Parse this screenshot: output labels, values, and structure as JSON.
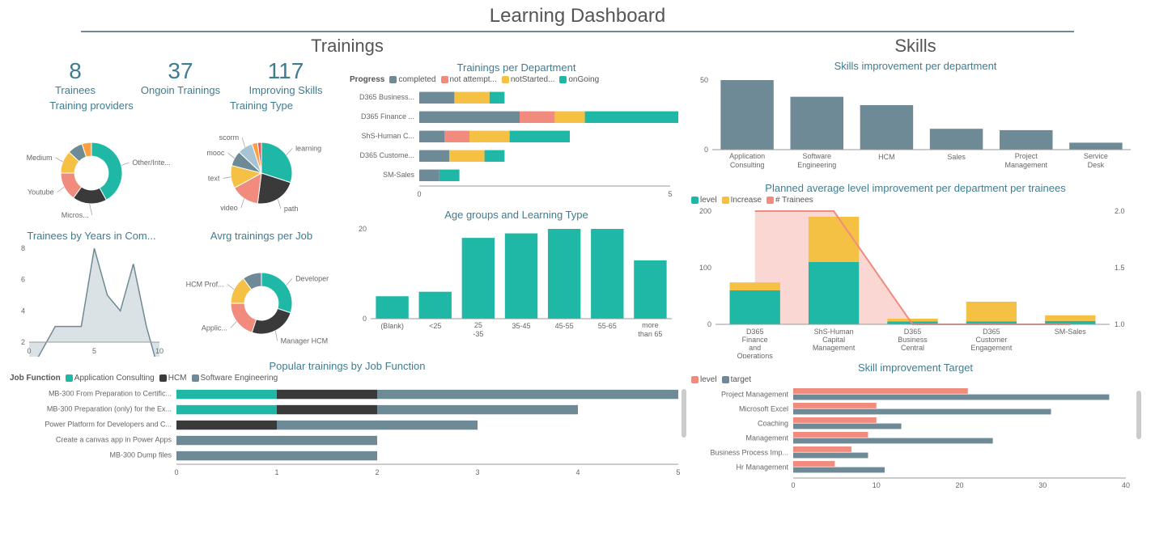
{
  "title": "Learning Dashboard",
  "colors": {
    "teal": "#1fb8a6",
    "dark": "#3a3a3a",
    "yellow": "#f5c144",
    "salmon": "#f08b7d",
    "blue": "#6f8a97",
    "lightblue": "#a7c4d4",
    "bg": "#ffffff",
    "grid": "#dddddd",
    "title": "#3f7c90",
    "text": "#555555"
  },
  "trainings": {
    "heading": "Trainings",
    "kpis": [
      {
        "value": "8",
        "label": "Trainees"
      },
      {
        "value": "37",
        "label": "Ongoin Trainings"
      },
      {
        "value": "117",
        "label": "Improving Skills"
      }
    ],
    "providers": {
      "title": "Training providers",
      "type": "donut",
      "inner_radius": 0.55,
      "slices": [
        {
          "label": "Other/Inte...",
          "value": 42,
          "color": "#1fb8a6"
        },
        {
          "label": "Micros...",
          "value": 18,
          "color": "#3a3a3a"
        },
        {
          "label": "Youtube",
          "value": 15,
          "color": "#f08b7d"
        },
        {
          "label": "Medium",
          "value": 12,
          "color": "#f5c144"
        },
        {
          "label": "",
          "value": 8,
          "color": "#6f8a97"
        },
        {
          "label": "",
          "value": 5,
          "color": "#ff9f40"
        }
      ]
    },
    "training_type": {
      "title": "Training Type",
      "type": "pie",
      "slices": [
        {
          "label": "learning",
          "value": 30,
          "color": "#1fb8a6"
        },
        {
          "label": "path",
          "value": 22,
          "color": "#3a3a3a"
        },
        {
          "label": "video",
          "value": 15,
          "color": "#f08b7d"
        },
        {
          "label": "text",
          "value": 12,
          "color": "#f5c144"
        },
        {
          "label": "mooc",
          "value": 8,
          "color": "#6f8a97"
        },
        {
          "label": "scorm",
          "value": 8,
          "color": "#a7c4d4"
        },
        {
          "label": "",
          "value": 3,
          "color": "#ff9f40"
        },
        {
          "label": "",
          "value": 2,
          "color": "#e55"
        }
      ]
    },
    "years_in_company": {
      "title": "Trainees by Years in Com...",
      "type": "area",
      "x": [
        0,
        2,
        4,
        5,
        6,
        7,
        8,
        9,
        10
      ],
      "y": [
        0,
        3,
        3,
        8,
        5,
        4,
        7,
        3,
        0
      ],
      "ylim": [
        2,
        8
      ],
      "ytick_step": 2,
      "xlim": [
        0,
        10
      ],
      "xtick_step": 5,
      "line_color": "#6f8a97",
      "fill_color": "#6f8a97",
      "fill_opacity": 0.25
    },
    "avrg_per_job": {
      "title": "Avrg trainings per Job",
      "type": "donut",
      "inner_radius": 0.55,
      "slices": [
        {
          "label": "Developer",
          "value": 30,
          "color": "#1fb8a6"
        },
        {
          "label": "Manager HCM",
          "value": 25,
          "color": "#3a3a3a"
        },
        {
          "label": "Applic...",
          "value": 20,
          "color": "#f08b7d"
        },
        {
          "label": "HCM Prof...",
          "value": 15,
          "color": "#f5c144"
        },
        {
          "label": "",
          "value": 10,
          "color": "#6f8a97"
        }
      ]
    },
    "per_department": {
      "title": "Trainings per Department",
      "type": "stacked-bar-h",
      "legend_label": "Progress",
      "series": [
        {
          "name": "completed",
          "color": "#6f8a97"
        },
        {
          "name": "not attempt...",
          "color": "#f08b7d"
        },
        {
          "name": "notStarted...",
          "color": "#f5c144"
        },
        {
          "name": "onGoing",
          "color": "#1fb8a6"
        }
      ],
      "categories": [
        "D365 Business...",
        "D365 Finance ...",
        "ShS-Human C...",
        "D365 Custome...",
        "SM-Sales"
      ],
      "data": [
        [
          0.7,
          0.0,
          0.7,
          0.3
        ],
        [
          2.0,
          0.7,
          0.6,
          1.9
        ],
        [
          0.5,
          0.5,
          0.8,
          1.2
        ],
        [
          0.6,
          0.0,
          0.7,
          0.4
        ],
        [
          0.4,
          0.0,
          0.0,
          0.4
        ]
      ],
      "xlim": [
        0,
        5
      ],
      "xtick_step": 5
    },
    "age_groups": {
      "title": "Age groups and Learning Type",
      "type": "bar",
      "categories": [
        "(Blank)",
        "<25",
        "25 -35",
        "35-45",
        "45-55",
        "55-65",
        "more than 65"
      ],
      "values": [
        5,
        6,
        18,
        19,
        20,
        21,
        13
      ],
      "bar_color": "#1fb8a6",
      "ylim": [
        0,
        20
      ],
      "ytick_step": 20
    },
    "popular_by_job": {
      "title": "Popular trainings by Job Function",
      "type": "stacked-bar-h",
      "legend_label": "Job Function",
      "series": [
        {
          "name": "Application Consulting",
          "color": "#1fb8a6"
        },
        {
          "name": "HCM",
          "color": "#3a3a3a"
        },
        {
          "name": "Software Engineering",
          "color": "#6f8a97"
        }
      ],
      "categories": [
        "MB-300 From Preparation to Certific...",
        "MB-300 Preparation (only) for the Ex...",
        "Power Platform for Developers and C...",
        "Create a canvas app in Power Apps",
        "MB-300 Dump files"
      ],
      "data": [
        [
          1.0,
          1.0,
          3.0
        ],
        [
          1.0,
          1.0,
          2.0
        ],
        [
          0.0,
          1.0,
          2.0
        ],
        [
          0.0,
          0.0,
          2.0
        ],
        [
          0.0,
          0.0,
          2.0
        ]
      ],
      "xlim": [
        0,
        5
      ],
      "xtick_step": 1
    }
  },
  "skills": {
    "heading": "Skills",
    "per_department": {
      "title": "Skills improvement per department",
      "type": "bar",
      "categories": [
        "Application Consulting",
        "Software Engineering",
        "HCM",
        "Sales",
        "Project Management",
        "Service Desk"
      ],
      "values": [
        68,
        38,
        32,
        15,
        14,
        5
      ],
      "bar_color": "#6f8a97",
      "ylim": [
        0,
        50
      ],
      "ytick_step": 50
    },
    "planned_avg": {
      "title": "Planned average level improvement per department per trainees",
      "type": "combo-stacked-line",
      "categories": [
        "D365 Finance and Operations",
        "ShS-Human Capital Management",
        "D365 Business Central",
        "D365 Customer Engagement",
        "SM-Sales"
      ],
      "stack_series": [
        {
          "name": "level",
          "color": "#1fb8a6"
        },
        {
          "name": "Increase",
          "color": "#f5c144"
        }
      ],
      "stack_data": [
        [
          60,
          14
        ],
        [
          110,
          80
        ],
        [
          5,
          5
        ],
        [
          5,
          35
        ],
        [
          6,
          10
        ]
      ],
      "line_series": {
        "name": "# Trainees",
        "color": "#f08b7d"
      },
      "line_data": [
        2.0,
        2.0,
        1.0,
        1.0,
        1.0
      ],
      "ylim_left": [
        0,
        200
      ],
      "ytick_left": 100,
      "ylim_right": [
        1.0,
        2.0
      ],
      "ytick_right": 0.5,
      "area_fill_opacity": 0.35
    },
    "improvement_target": {
      "title": "Skill improvement Target",
      "type": "grouped-bar-h",
      "series": [
        {
          "name": "level",
          "color": "#f08b7d"
        },
        {
          "name": "target",
          "color": "#6f8a97"
        }
      ],
      "categories": [
        "Project Management",
        "Microsoft Excel",
        "Coaching",
        "Management",
        "Business Process Imp...",
        "Hr Management"
      ],
      "data": [
        [
          21,
          38
        ],
        [
          10,
          31
        ],
        [
          10,
          13
        ],
        [
          9,
          24
        ],
        [
          7,
          9
        ],
        [
          5,
          11
        ]
      ],
      "xlim": [
        0,
        40
      ],
      "xtick_step": 10
    }
  }
}
